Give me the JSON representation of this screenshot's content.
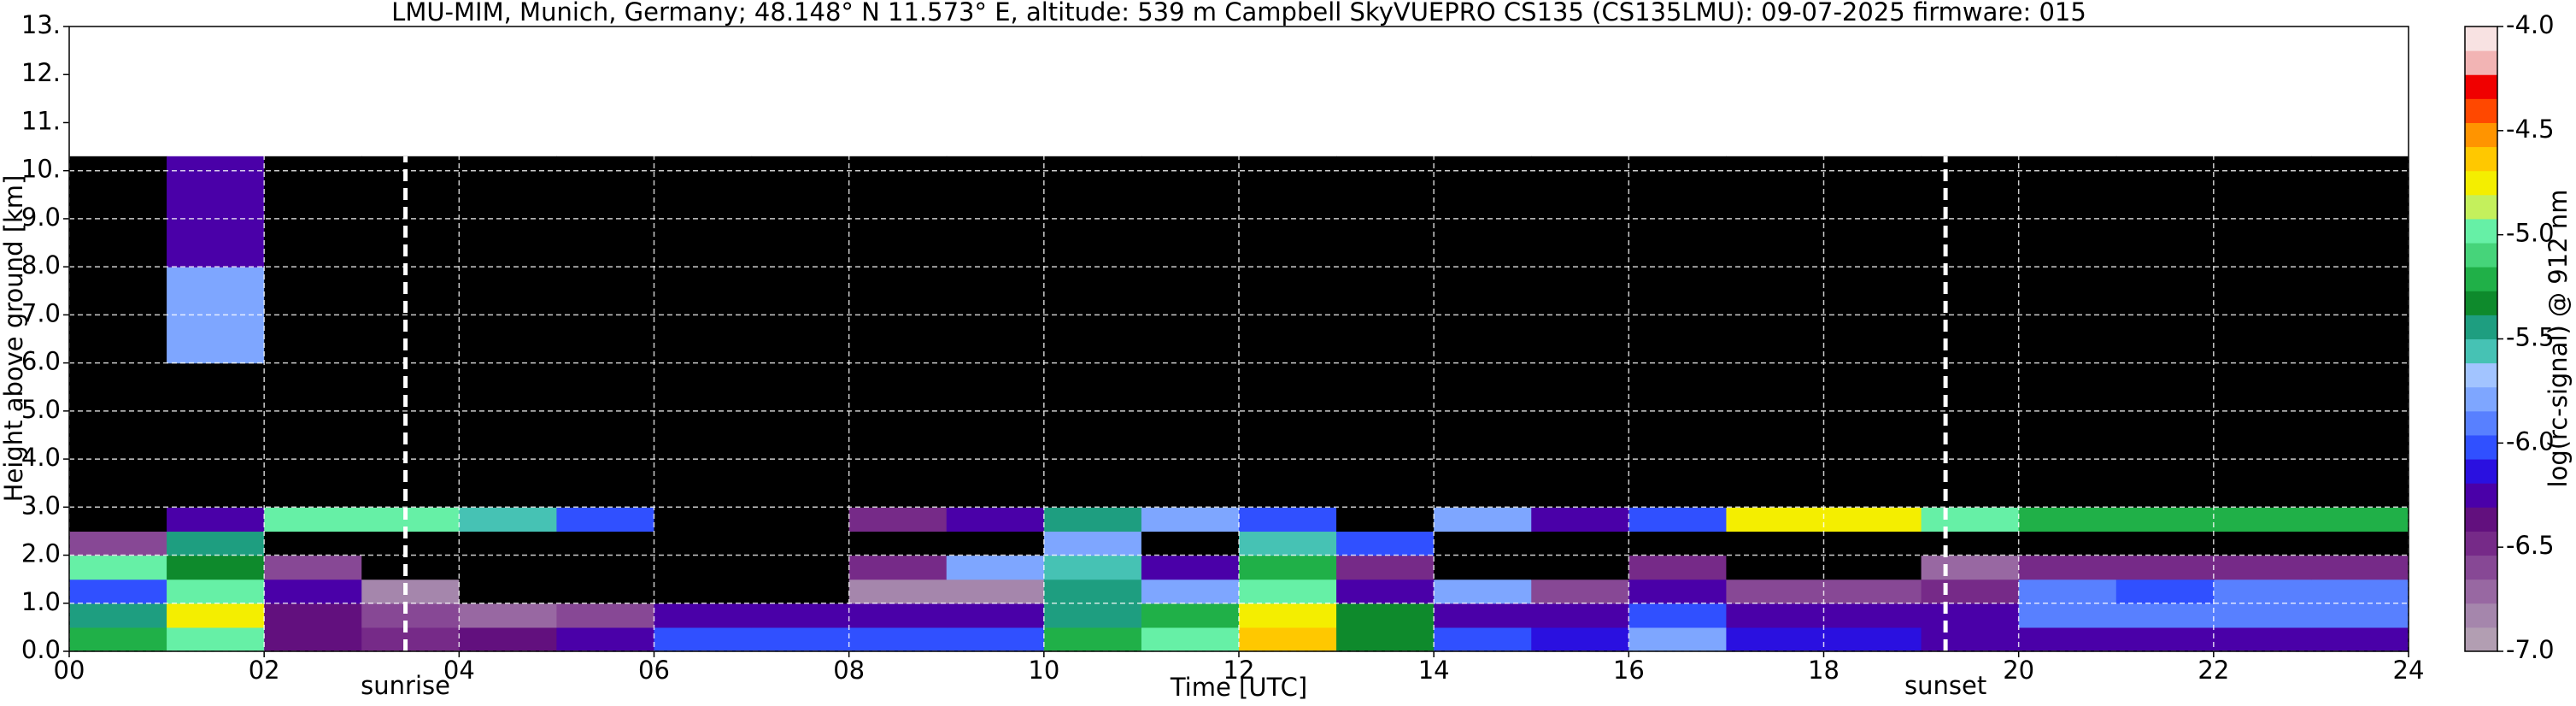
{
  "chart_data": {
    "type": "heatmap",
    "title": "LMU-MIM, Munich, Germany; 48.148° N 11.573° E, altitude: 539 m    Campbell SkyVUEPRO CS135 (CS135LMU): 09-07-2025    firmware: 015",
    "x_label": "Time [UTC]",
    "y_label": "Height above ground [km]",
    "colorbar_label": "log(rc-signal) @ 912 nm",
    "xlim": [
      0,
      24
    ],
    "ylim": [
      0,
      13
    ],
    "xticks": [
      {
        "value": 0,
        "label": "00"
      },
      {
        "value": 2,
        "label": "02"
      },
      {
        "value": 4,
        "label": "04"
      },
      {
        "value": 6,
        "label": "06"
      },
      {
        "value": 8,
        "label": "08"
      },
      {
        "value": 10,
        "label": "10"
      },
      {
        "value": 12,
        "label": "12"
      },
      {
        "value": 14,
        "label": "14"
      },
      {
        "value": 16,
        "label": "16"
      },
      {
        "value": 18,
        "label": "18"
      },
      {
        "value": 20,
        "label": "20"
      },
      {
        "value": 22,
        "label": "22"
      },
      {
        "value": 24,
        "label": "24"
      }
    ],
    "yticks": [
      {
        "value": 0,
        "label": "0.0"
      },
      {
        "value": 1,
        "label": "1.0"
      },
      {
        "value": 2,
        "label": "2.0"
      },
      {
        "value": 3,
        "label": "3.0"
      },
      {
        "value": 4,
        "label": "4.0"
      },
      {
        "value": 5,
        "label": "5.0"
      },
      {
        "value": 6,
        "label": "6.0"
      },
      {
        "value": 7,
        "label": "7.0"
      },
      {
        "value": 8,
        "label": "8.0"
      },
      {
        "value": 9,
        "label": "9.0"
      },
      {
        "value": 10,
        "label": "10."
      },
      {
        "value": 11,
        "label": "11."
      },
      {
        "value": 12,
        "label": "12."
      },
      {
        "value": 13,
        "label": "13."
      }
    ],
    "grid": true,
    "clim": [
      -7,
      -4
    ],
    "cticks": [
      {
        "value": -7,
        "label": "-7.0"
      },
      {
        "value": -6.5,
        "label": "-6.5"
      },
      {
        "value": -6,
        "label": "-6.0"
      },
      {
        "value": -5.5,
        "label": "-5.5"
      },
      {
        "value": -5,
        "label": "-5.0"
      },
      {
        "value": -4.5,
        "label": "-4.5"
      },
      {
        "value": -4,
        "label": "-4.0"
      }
    ],
    "colormap": [
      "#b29eb2",
      "#a586ac",
      "#9868a2",
      "#874895",
      "#762a88",
      "#62107e",
      "#4a00a8",
      "#2a10e0",
      "#3050ff",
      "#5880ff",
      "#7ea6ff",
      "#a2c4ff",
      "#46c2b4",
      "#1e9e80",
      "#0e8a2c",
      "#20b048",
      "#46d47a",
      "#66f0a6",
      "#c4f05c",
      "#f4ee00",
      "#ffc800",
      "#ff9400",
      "#ff4800",
      "#f00000",
      "#f2b4b4",
      "#f8e2e2"
    ],
    "under_color": "#000000",
    "xbins": [
      0,
      1,
      2,
      3,
      4,
      5,
      6,
      7,
      8,
      9,
      10,
      11,
      12,
      13,
      14,
      15,
      16,
      17,
      18,
      19,
      20,
      21,
      22,
      23,
      24
    ],
    "ybins": [
      0,
      0.5,
      1,
      1.5,
      2,
      2.5,
      3,
      3.5,
      4,
      6,
      8,
      10.3
    ],
    "z": [
      [
        -5.2,
        -5.0,
        -6.4,
        -6.5,
        -6.4,
        -6.3,
        -6.0,
        -6.0,
        -6.0,
        -6.0,
        -5.2,
        -5.0,
        -4.6,
        -5.3,
        -6.0,
        -6.1,
        -5.8,
        -6.1,
        -6.1,
        -6.2,
        -6.3,
        -6.3,
        -6.3,
        -6.3
      ],
      [
        -5.5,
        -4.8,
        -6.4,
        -6.6,
        -6.7,
        -6.6,
        -6.3,
        -6.3,
        -6.2,
        -6.3,
        -5.5,
        -5.2,
        -4.7,
        -5.3,
        -6.2,
        -6.2,
        -6.0,
        -6.3,
        -6.3,
        -6.3,
        -5.9,
        -5.9,
        -5.9,
        -5.9
      ],
      [
        -6.0,
        -5.0,
        -6.3,
        -6.8,
        -7.1,
        -7.1,
        -7.1,
        -7.1,
        -6.8,
        -6.8,
        -5.5,
        -5.8,
        -5.0,
        -6.3,
        -5.8,
        -6.6,
        -6.2,
        -6.6,
        -6.6,
        -6.5,
        -5.9,
        -6.0,
        -5.9,
        -5.9
      ],
      [
        -5.0,
        -5.3,
        -6.6,
        -7.1,
        -7.1,
        -7.1,
        -7.1,
        -7.1,
        -6.5,
        -5.8,
        -5.6,
        -6.3,
        -5.2,
        -6.5,
        -7.1,
        -7.1,
        -6.5,
        -7.1,
        -7.1,
        -6.7,
        -6.5,
        -6.5,
        -6.5,
        -6.5
      ],
      [
        -6.6,
        -5.5,
        -7.1,
        -7.1,
        -7.1,
        -7.1,
        -7.1,
        -7.1,
        -7.1,
        -7.1,
        -5.8,
        -7.1,
        -5.6,
        -6.0,
        -7.1,
        -7.1,
        -7.1,
        -7.1,
        -7.1,
        -7.1,
        -7.1,
        -7.1,
        -7.1,
        -7.1
      ],
      [
        -7.1,
        -6.2,
        -5.0,
        -5.0,
        -5.6,
        -6.0,
        -7.1,
        -7.1,
        -6.5,
        -6.3,
        -5.5,
        -5.8,
        -6.0,
        -7.1,
        -5.8,
        -6.3,
        -6.0,
        -4.8,
        -4.8,
        -5.0,
        -5.2,
        -5.2,
        -5.2,
        -5.2
      ],
      [
        -7.1,
        -7.1,
        -7.1,
        -7.1,
        -7.1,
        -7.1,
        -7.1,
        -7.1,
        -7.1,
        -7.1,
        -7.1,
        -7.1,
        -7.1,
        -7.1,
        -7.1,
        -7.1,
        -7.1,
        -7.1,
        -7.1,
        -7.1,
        -7.1,
        -7.1,
        -7.1,
        -7.1
      ],
      [
        -7.1,
        -7.1,
        -7.1,
        -7.1,
        -7.1,
        -7.1,
        -7.1,
        -7.1,
        -7.1,
        -7.1,
        -7.1,
        -7.1,
        -7.1,
        -7.1,
        -7.1,
        -7.1,
        -7.1,
        -7.1,
        -7.1,
        -7.1,
        -7.1,
        -7.1,
        -7.1,
        -7.1
      ],
      [
        -7.1,
        -7.1,
        -7.1,
        -7.1,
        -7.1,
        -7.1,
        -7.1,
        -7.1,
        -7.1,
        -7.1,
        -7.1,
        -7.1,
        -7.1,
        -7.1,
        -7.1,
        -7.1,
        -7.1,
        -7.1,
        -7.1,
        -7.1,
        -7.1,
        -7.1,
        -7.1,
        -7.1
      ],
      [
        -7.1,
        -5.8,
        -7.1,
        -7.1,
        -7.1,
        -7.1,
        -7.1,
        -7.1,
        -7.1,
        -7.1,
        -7.1,
        -7.1,
        -7.1,
        -7.1,
        -7.1,
        -7.1,
        -7.1,
        -7.1,
        -7.1,
        -7.1,
        -7.1,
        -7.1,
        -7.1,
        -7.1
      ],
      [
        -7.1,
        -6.2,
        -7.1,
        -7.1,
        -7.1,
        -7.1,
        -7.1,
        -7.1,
        -7.1,
        -7.1,
        -7.1,
        -7.1,
        -7.1,
        -7.1,
        -7.1,
        -7.1,
        -7.1,
        -7.1,
        -7.1,
        -7.1,
        -7.1,
        -7.1,
        -7.1,
        -7.1
      ]
    ],
    "annotations": [
      {
        "label": "sunrise",
        "x": 3.45
      },
      {
        "label": "sunset",
        "x": 19.25
      }
    ]
  }
}
